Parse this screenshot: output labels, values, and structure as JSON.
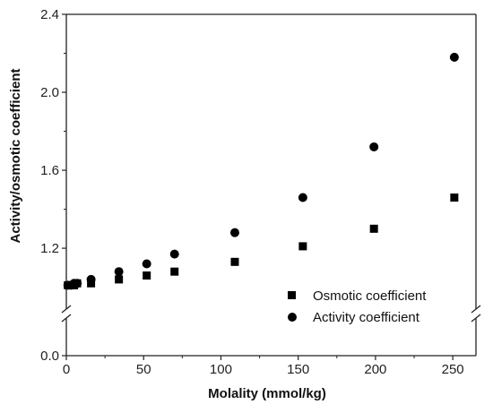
{
  "chart_data": {
    "type": "scatter",
    "xlabel": "Molality (mmol/kg)",
    "ylabel": "Activity/osmotic coefficient",
    "xlim": [
      0,
      265
    ],
    "ylim_lower": [
      0,
      0.12
    ],
    "ylim_upper": [
      0.92,
      2.4
    ],
    "axis_break": true,
    "x_ticks": [
      0,
      50,
      100,
      150,
      200,
      250
    ],
    "x_tick_labels": [
      "0",
      "50",
      "100",
      "150",
      "200",
      "250"
    ],
    "y_ticks": [
      0.0,
      1.2,
      1.6,
      2.0,
      2.4
    ],
    "y_tick_labels": [
      "0.0",
      "1.2",
      "1.6",
      "2.0",
      "2.4"
    ],
    "legend_position": "bottom-right",
    "series": [
      {
        "name": "Osmotic coefficient",
        "marker": "square",
        "x": [
          1,
          3,
          5,
          7,
          16,
          34,
          52,
          70,
          109,
          153,
          199,
          251
        ],
        "y": [
          1.01,
          1.01,
          1.01,
          1.02,
          1.02,
          1.04,
          1.06,
          1.08,
          1.13,
          1.21,
          1.3,
          1.46
        ]
      },
      {
        "name": "Activity coefficient",
        "marker": "circle",
        "x": [
          1,
          3,
          5,
          7,
          16,
          34,
          52,
          70,
          109,
          153,
          199,
          251
        ],
        "y": [
          1.01,
          1.01,
          1.02,
          1.02,
          1.04,
          1.08,
          1.12,
          1.17,
          1.28,
          1.46,
          1.72,
          2.18
        ]
      }
    ]
  }
}
